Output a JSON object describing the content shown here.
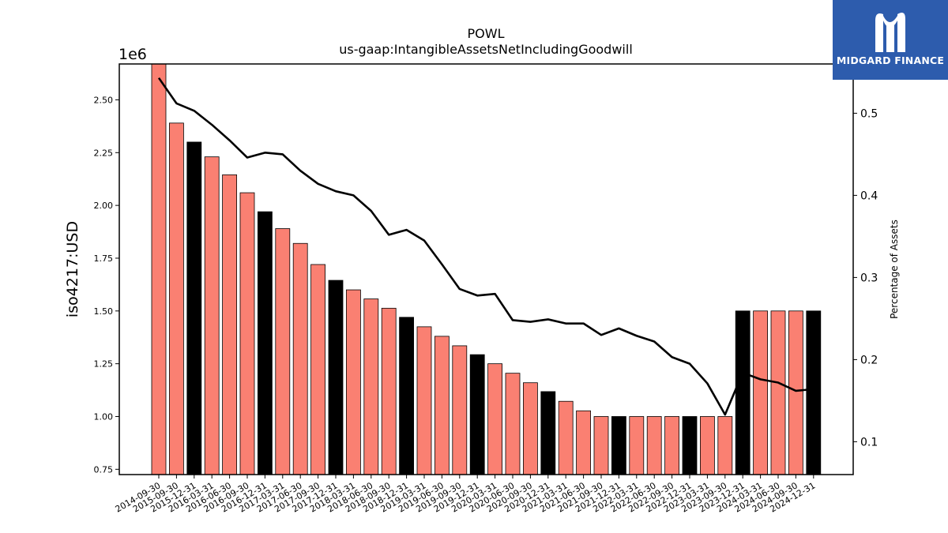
{
  "brand": {
    "name": "MIDGARD FINANCE",
    "logo_icon": "midgard-m-icon",
    "background": "#2d5cad"
  },
  "chart_data": {
    "type": "bar",
    "title": "POWL",
    "subtitle": "us-gaap:IntangibleAssetsNetIncludingGoodwill",
    "ylabel": "iso4217:USD",
    "y_offset_label": "1e6",
    "y2label": "Percentage of Assets",
    "ylim": [
      725000,
      2670000
    ],
    "y2lim": [
      0.06,
      0.56
    ],
    "yticks": [
      "0.75",
      "1.00",
      "1.25",
      "1.50",
      "1.75",
      "2.00",
      "2.25",
      "2.50"
    ],
    "y2ticks": [
      "0.1",
      "0.2",
      "0.3",
      "0.4",
      "0.5"
    ],
    "grid": false,
    "colors": {
      "quarter_bar": "#fa8072",
      "annual_bar": "#000000",
      "line": "#000000"
    },
    "categories": [
      "2014-09-30",
      "2015-09-30",
      "2015-12-31",
      "2016-03-31",
      "2016-06-30",
      "2016-09-30",
      "2016-12-31",
      "2017-03-31",
      "2017-06-30",
      "2017-09-30",
      "2017-12-31",
      "2018-03-31",
      "2018-06-30",
      "2018-09-30",
      "2018-12-31",
      "2019-03-31",
      "2019-06-30",
      "2019-09-30",
      "2019-12-31",
      "2020-03-31",
      "2020-06-30",
      "2020-09-30",
      "2020-12-31",
      "2021-03-31",
      "2021-06-30",
      "2021-09-30",
      "2021-12-31",
      "2022-03-31",
      "2022-06-30",
      "2022-09-30",
      "2022-12-31",
      "2023-03-31",
      "2023-09-30",
      "2023-12-31",
      "2024-03-31",
      "2024-06-30",
      "2024-09-30",
      "2024-12-31"
    ],
    "series": [
      {
        "type": "bar",
        "values": [
          2680000,
          2390000,
          2300000,
          2230000,
          2145000,
          2060000,
          1970000,
          1890000,
          1820000,
          1720000,
          1645000,
          1600000,
          1557000,
          1513000,
          1470000,
          1425000,
          1380000,
          1335000,
          1293000,
          1250000,
          1205000,
          1160000,
          1118000,
          1072000,
          1027000,
          1000000,
          1000000,
          1000000,
          1000000,
          1000000,
          1000000,
          1000000,
          1000000,
          1500000,
          1500000,
          1500000,
          1500000,
          1500000
        ],
        "highlight": [
          false,
          false,
          true,
          false,
          false,
          false,
          true,
          false,
          false,
          false,
          true,
          false,
          false,
          false,
          true,
          false,
          false,
          false,
          true,
          false,
          false,
          false,
          true,
          false,
          false,
          false,
          true,
          false,
          false,
          false,
          true,
          false,
          false,
          true,
          false,
          false,
          false,
          true
        ]
      },
      {
        "type": "line",
        "axis": "right",
        "values": [
          0.543,
          0.512,
          0.503,
          0.486,
          0.467,
          0.446,
          0.452,
          0.45,
          0.43,
          0.414,
          0.405,
          0.4,
          0.381,
          0.352,
          0.358,
          0.345,
          0.316,
          0.286,
          0.278,
          0.28,
          0.248,
          0.246,
          0.249,
          0.244,
          0.244,
          0.23,
          0.238,
          0.229,
          0.222,
          0.203,
          0.195,
          0.171,
          0.133,
          0.184,
          0.176,
          0.172,
          0.162,
          0.164
        ]
      }
    ]
  }
}
